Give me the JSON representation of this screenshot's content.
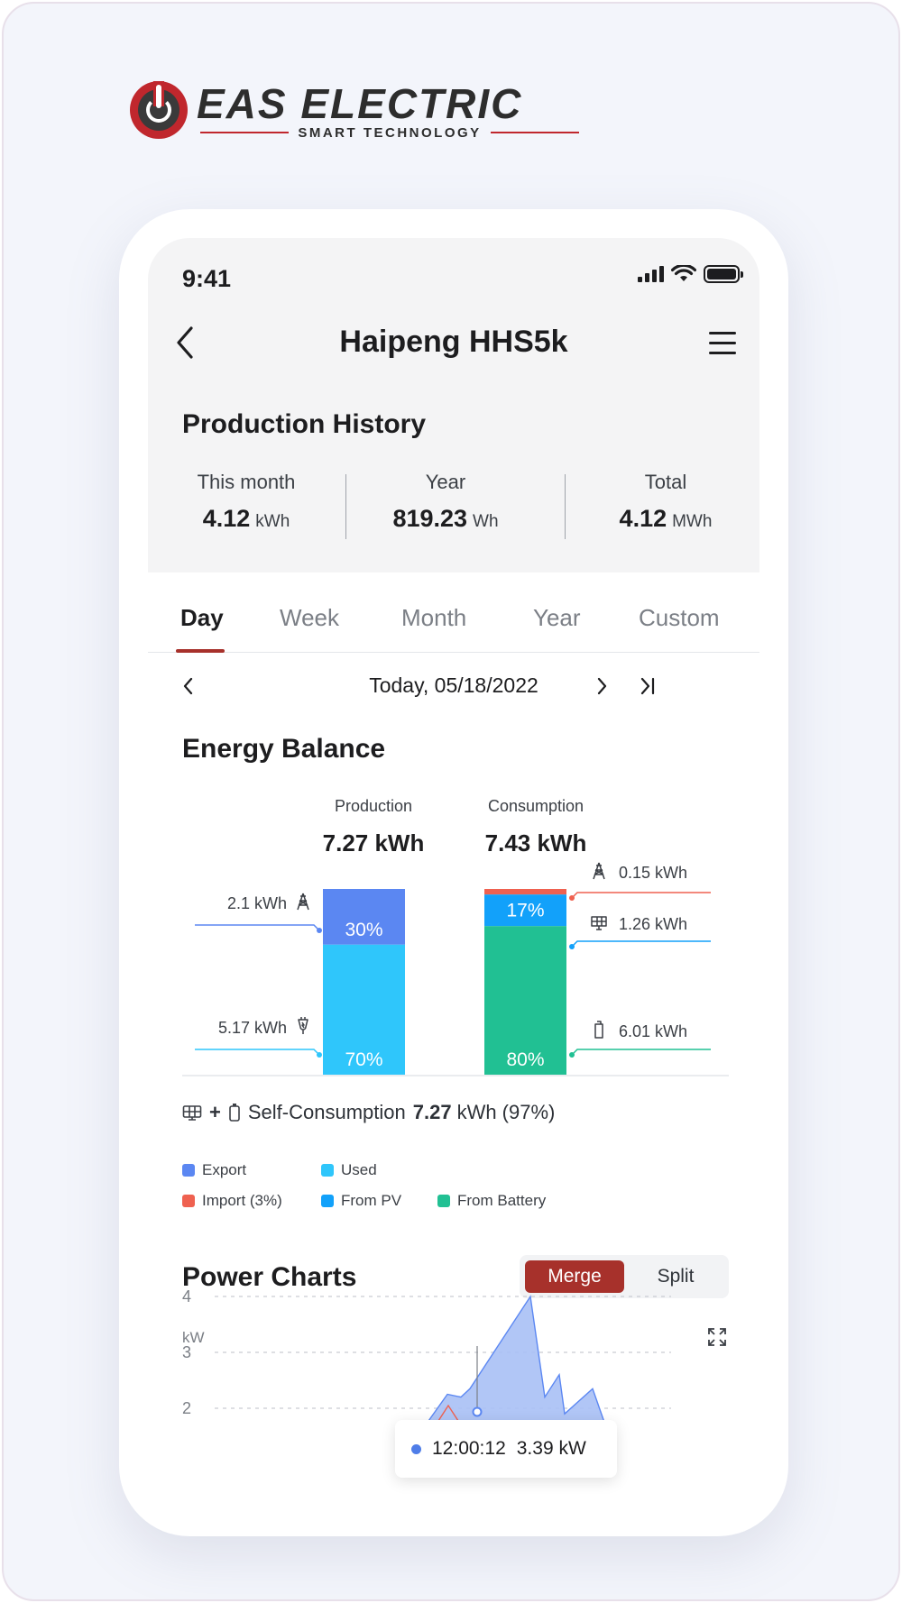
{
  "brand": {
    "name": "EAS ELECTRIC",
    "tagline": "SMART TECHNOLOGY"
  },
  "status_bar": {
    "time": "9:41"
  },
  "header": {
    "title": "Haipeng HHS5k"
  },
  "production_history": {
    "title": "Production History",
    "stats": [
      {
        "label": "This month",
        "value": "4.12",
        "unit": "kWh"
      },
      {
        "label": "Year",
        "value": "819.23",
        "unit": "Wh"
      },
      {
        "label": "Total",
        "value": "4.12",
        "unit": "MWh"
      }
    ]
  },
  "tabs": [
    {
      "label": "Day",
      "active": true
    },
    {
      "label": "Week",
      "active": false
    },
    {
      "label": "Month",
      "active": false
    },
    {
      "label": "Year",
      "active": false
    },
    {
      "label": "Custom",
      "active": false
    }
  ],
  "date": {
    "text": "Today, 05/18/2022"
  },
  "energy_balance": {
    "title": "Energy Balance",
    "production": {
      "label": "Production",
      "value": "7.27 kWh"
    },
    "consumption": {
      "label": "Consumption",
      "value": "7.43 kWh"
    },
    "self_consumption": {
      "prefix": "Self-Consumption",
      "value": "7.27",
      "suffix": "kWh (97%)"
    }
  },
  "colors": {
    "export": "#5b87f2",
    "used": "#2fc6fb",
    "import": "#ef6150",
    "from_pv": "#12a1fa",
    "from_battery": "#21c093",
    "accent": "#a7312b"
  },
  "legend": {
    "export": "Export",
    "used": "Used",
    "import": "Import (3%)",
    "from_pv": "From PV",
    "from_battery": "From Battery"
  },
  "chart_data": [
    {
      "type": "bar",
      "stacked": true,
      "categories": [
        "Production",
        "Consumption"
      ],
      "series": [
        {
          "name": "Export",
          "values": [
            30,
            0
          ],
          "labels": [
            "30%",
            ""
          ],
          "callout": "2.1 kWh"
        },
        {
          "name": "Used",
          "values": [
            70,
            0
          ],
          "labels": [
            "70%",
            ""
          ],
          "callout": "5.17 kWh"
        },
        {
          "name": "Import (3%)",
          "values": [
            0,
            3
          ],
          "labels": [
            "",
            ""
          ],
          "callout": "0.15 kWh"
        },
        {
          "name": "From PV",
          "values": [
            0,
            17
          ],
          "labels": [
            "",
            "17%"
          ],
          "callout": "1.26 kWh"
        },
        {
          "name": "From Battery",
          "values": [
            0,
            80
          ],
          "labels": [
            "",
            "80%"
          ],
          "callout": "6.01 kWh"
        }
      ]
    },
    {
      "type": "area",
      "title": "Power Charts",
      "ylabel": "kW",
      "y_ticks": [
        "4",
        "3",
        "2"
      ],
      "ylim": [
        1.75,
        4.35
      ],
      "x": [
        0,
        1,
        2,
        3,
        4,
        5,
        6,
        7,
        8,
        9
      ],
      "series": [
        {
          "name": "Power",
          "values": [
            1.75,
            2.25,
            2.2,
            2.35,
            4.0,
            2.2,
            2.6,
            1.9,
            2.35,
            1.75
          ]
        }
      ],
      "tooltip": {
        "time": "12:00:12",
        "value": "3.39 kW"
      }
    }
  ],
  "power_charts": {
    "title": "Power Charts",
    "merge_label": "Merge",
    "split_label": "Split",
    "unit_label": "kW",
    "tooltip_time": "12:00:12",
    "tooltip_value": "3.39 kW"
  }
}
